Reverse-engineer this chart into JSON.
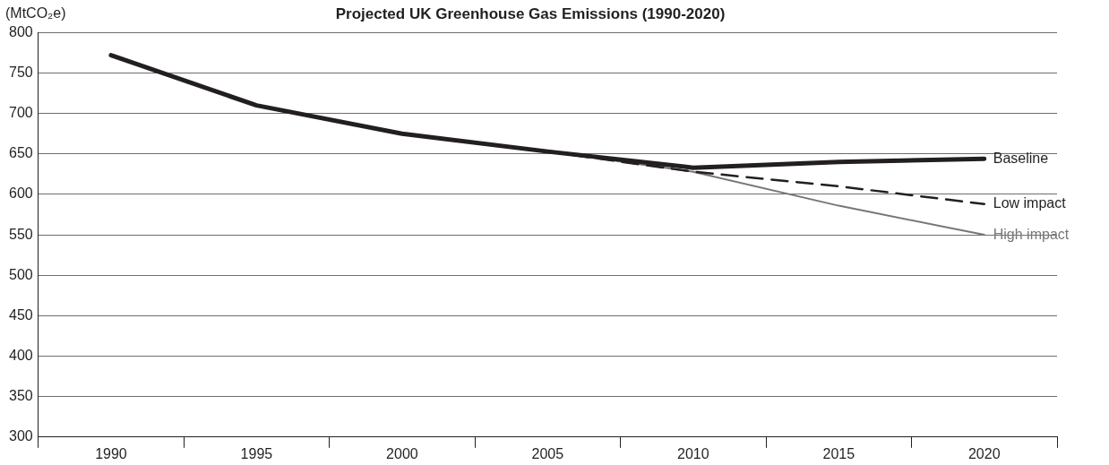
{
  "chart_data": {
    "type": "line",
    "title": "Projected UK Greenhouse Gas Emissions (1990-2020)",
    "ylabel": "(MtCO₂e)",
    "categories": [
      "1990",
      "1995",
      "2000",
      "2005",
      "2010",
      "2015",
      "2020"
    ],
    "series": [
      {
        "name": "Baseline",
        "color": "#231f20",
        "line_style": "solid",
        "values": [
          772,
          710,
          675,
          653,
          633,
          640,
          644
        ]
      },
      {
        "name": "Low impact",
        "color": "#231f20",
        "line_style": "dashed",
        "values": [
          null,
          null,
          null,
          653,
          628,
          610,
          588
        ]
      },
      {
        "name": "High impact",
        "color": "#777777",
        "line_style": "solid",
        "values": [
          null,
          null,
          null,
          653,
          628,
          586,
          550
        ]
      }
    ],
    "ylim": [
      300,
      800
    ],
    "yticks": [
      300,
      350,
      400,
      450,
      500,
      550,
      600,
      650,
      700,
      750,
      800
    ],
    "grid": "y",
    "legend": false,
    "marker": "none"
  }
}
